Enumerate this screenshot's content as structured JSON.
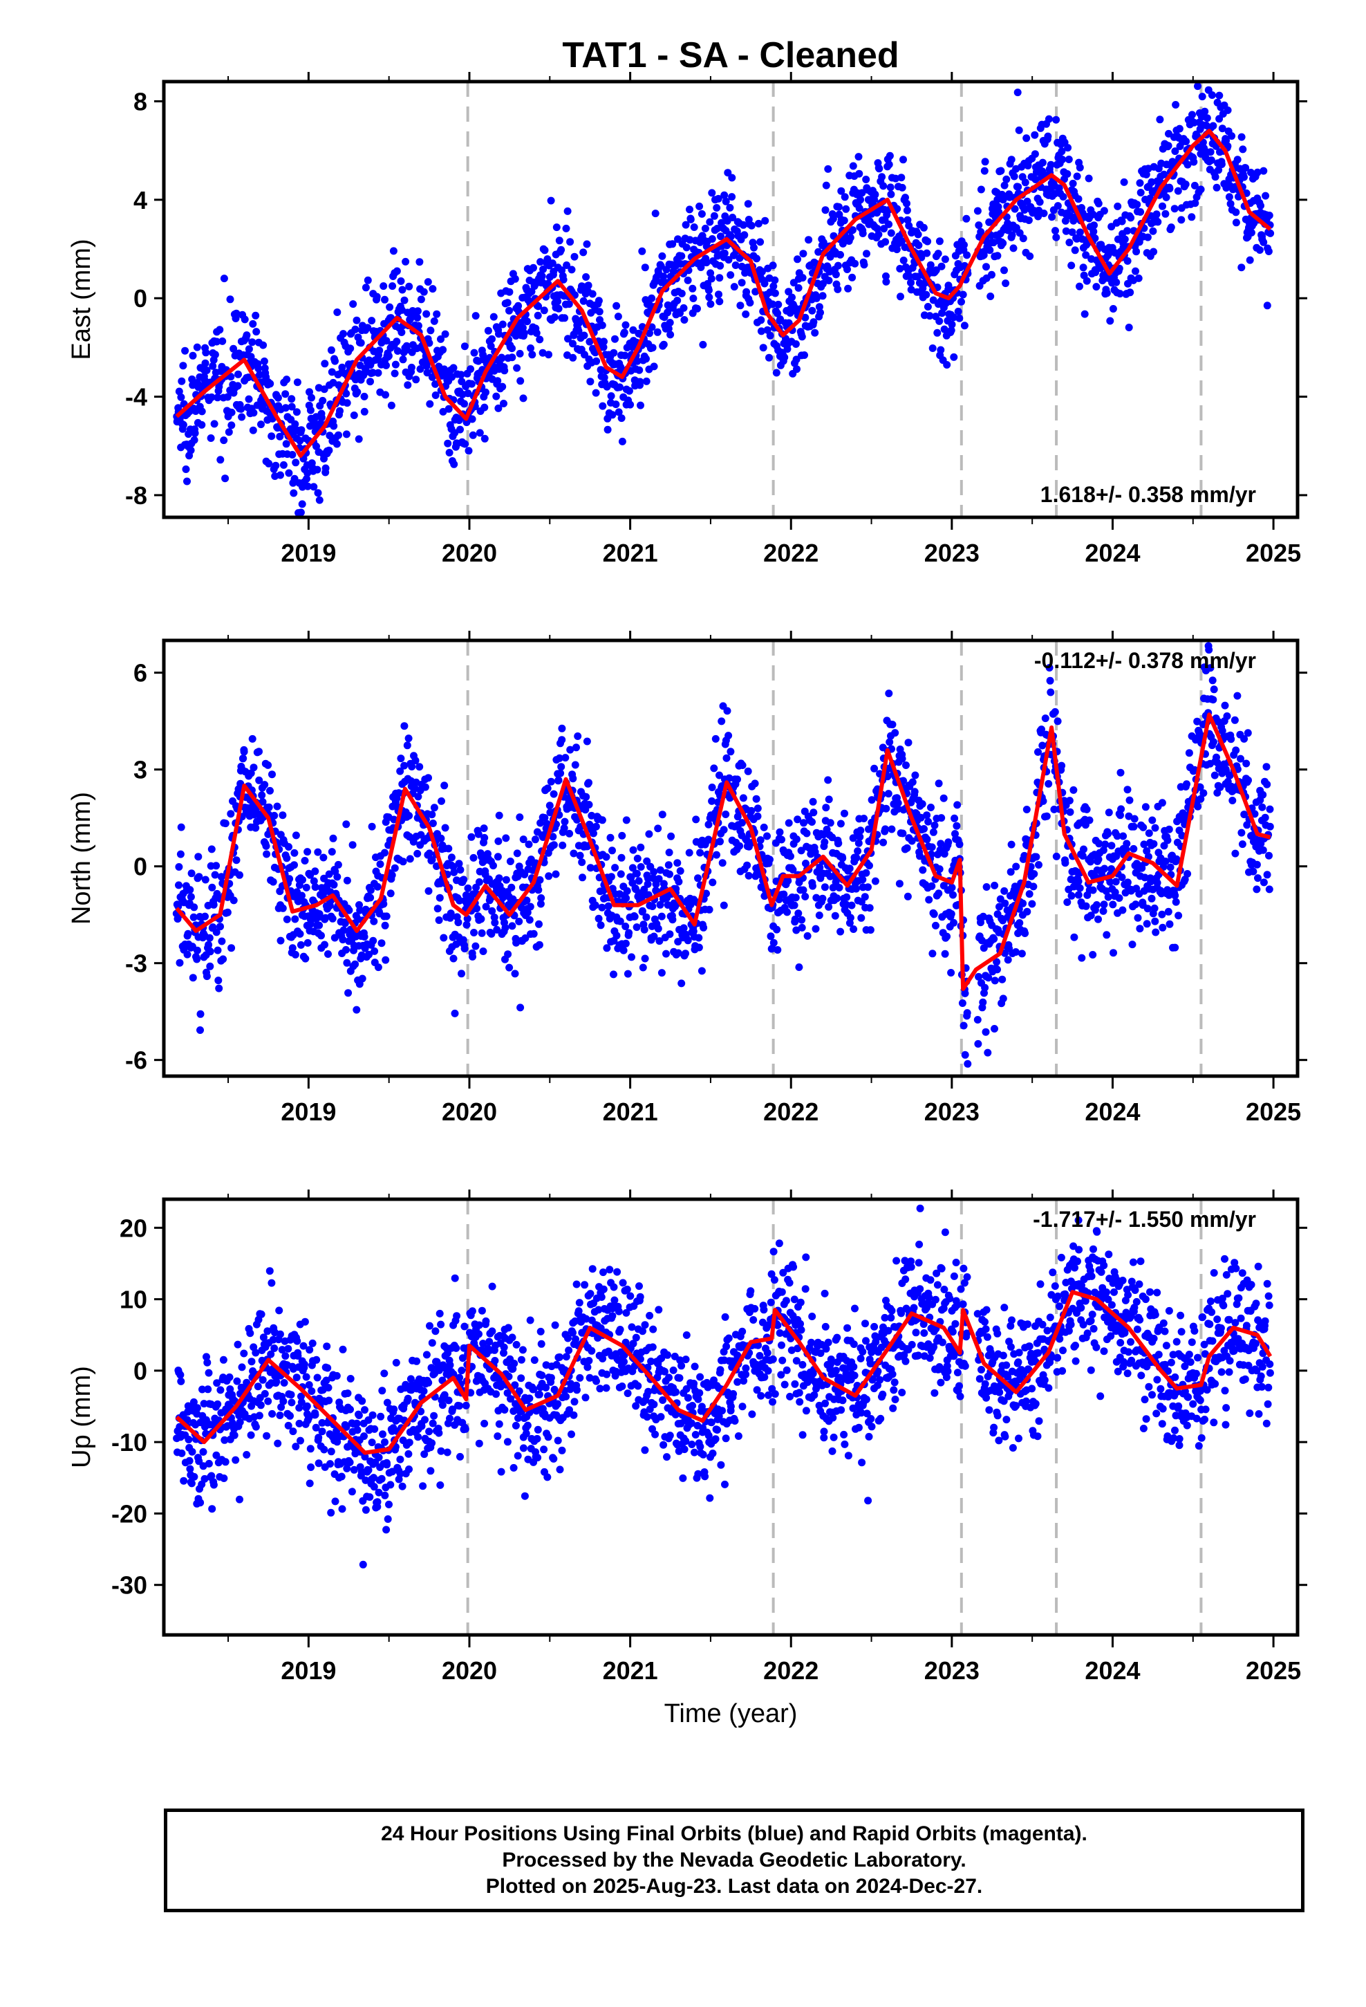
{
  "title": "TAT1  - SA - Cleaned",
  "xlabel": "Time (year)",
  "colors": {
    "points": "#0000ff",
    "fit": "#ff0000",
    "breaks": "#bbbbbb",
    "frame": "#000000"
  },
  "footer": {
    "line1": "24 Hour Positions Using Final Orbits (blue) and Rapid Orbits (magenta).",
    "line2": "Processed by the Nevada Geodetic Laboratory.",
    "line3": "Plotted on 2025-Aug-23. Last data on 2024-Dec-27."
  },
  "chart_data": [
    {
      "type": "scatter",
      "component": "east",
      "ylabel": "East (mm)",
      "velocity_label": "1.618+/- 0.358 mm/yr",
      "velocity_label_position": "bottom-right",
      "xlim": [
        2018.1,
        2025.15
      ],
      "ylim": [
        -8.9,
        8.8
      ],
      "yticks": [
        -8,
        -4,
        0,
        4,
        8
      ],
      "xticks": [
        2019,
        2020,
        2021,
        2022,
        2023,
        2024,
        2025
      ],
      "breaks": [
        2019.99,
        2021.89,
        2023.06,
        2023.65,
        2024.55
      ],
      "grid": false,
      "n_points": 2200,
      "noise_sd": 1.2,
      "series": [
        {
          "name": "Final Orbits",
          "kind": "points",
          "color": "#0000ff"
        },
        {
          "name": "Model fit",
          "kind": "line",
          "color": "#ff0000",
          "x": [
            2018.18,
            2018.35,
            2018.6,
            2018.8,
            2018.95,
            2019.1,
            2019.3,
            2019.55,
            2019.7,
            2019.85,
            2019.98,
            2020.1,
            2020.3,
            2020.55,
            2020.7,
            2020.85,
            2020.95,
            2021.05,
            2021.2,
            2021.4,
            2021.6,
            2021.75,
            2021.85,
            2021.95,
            2022.05,
            2022.2,
            2022.4,
            2022.6,
            2022.75,
            2022.9,
            2022.98,
            2023.05,
            2023.07,
            2023.2,
            2023.4,
            2023.62,
            2023.7,
            2023.85,
            2023.98,
            2024.1,
            2024.3,
            2024.5,
            2024.6,
            2024.7,
            2024.85,
            2024.98
          ],
          "y": [
            -4.8,
            -3.8,
            -2.5,
            -4.8,
            -6.4,
            -5.2,
            -2.5,
            -0.8,
            -1.5,
            -4.0,
            -4.9,
            -3.0,
            -0.8,
            0.7,
            -0.5,
            -2.8,
            -3.2,
            -2.0,
            0.3,
            1.6,
            2.4,
            1.5,
            -0.6,
            -1.5,
            -0.9,
            1.8,
            3.2,
            4.0,
            2.0,
            0.2,
            0.0,
            0.5,
            0.8,
            2.5,
            4.0,
            5.0,
            4.6,
            2.5,
            1.0,
            2.0,
            4.5,
            6.2,
            6.8,
            6.0,
            3.5,
            2.8
          ]
        }
      ]
    },
    {
      "type": "scatter",
      "component": "north",
      "ylabel": "North (mm)",
      "velocity_label": "-0.112+/- 0.378 mm/yr",
      "velocity_label_position": "top-right",
      "xlim": [
        2018.1,
        2025.15
      ],
      "ylim": [
        -6.5,
        7.0
      ],
      "yticks": [
        -6,
        -3,
        0,
        3,
        6
      ],
      "xticks": [
        2019,
        2020,
        2021,
        2022,
        2023,
        2024,
        2025
      ],
      "breaks": [
        2019.99,
        2021.89,
        2023.06,
        2023.65,
        2024.55
      ],
      "grid": false,
      "n_points": 2200,
      "noise_sd": 1.05,
      "series": [
        {
          "name": "Final Orbits",
          "kind": "points",
          "color": "#0000ff"
        },
        {
          "name": "Model fit",
          "kind": "line",
          "color": "#ff0000",
          "x": [
            2018.18,
            2018.3,
            2018.45,
            2018.6,
            2018.75,
            2018.9,
            2019.05,
            2019.15,
            2019.3,
            2019.45,
            2019.6,
            2019.75,
            2019.9,
            2019.98,
            2020.1,
            2020.25,
            2020.4,
            2020.6,
            2020.75,
            2020.9,
            2021.05,
            2021.25,
            2021.4,
            2021.6,
            2021.75,
            2021.88,
            2021.95,
            2022.05,
            2022.2,
            2022.35,
            2022.5,
            2022.6,
            2022.75,
            2022.9,
            2023.0,
            2023.05,
            2023.07,
            2023.15,
            2023.3,
            2023.45,
            2023.62,
            2023.7,
            2023.85,
            2024.0,
            2024.1,
            2024.25,
            2024.4,
            2024.6,
            2024.75,
            2024.9,
            2024.98
          ],
          "y": [
            -1.3,
            -2.0,
            -1.5,
            2.5,
            1.5,
            -1.4,
            -1.2,
            -0.9,
            -2.0,
            -1.0,
            2.4,
            1.2,
            -1.2,
            -1.5,
            -0.6,
            -1.5,
            -0.5,
            2.7,
            0.8,
            -1.2,
            -1.2,
            -0.7,
            -1.8,
            2.6,
            1.2,
            -1.2,
            -0.3,
            -0.3,
            0.3,
            -0.6,
            0.5,
            3.6,
            1.5,
            -0.3,
            -0.5,
            0.2,
            -3.8,
            -3.2,
            -2.7,
            -0.5,
            4.3,
            1.0,
            -0.5,
            -0.3,
            0.4,
            0.1,
            -0.6,
            4.7,
            3.0,
            1.0,
            0.9
          ]
        }
      ]
    },
    {
      "type": "scatter",
      "component": "up",
      "ylabel": "Up (mm)",
      "velocity_label": "-1.717+/- 1.550 mm/yr",
      "velocity_label_position": "top-right",
      "xlim": [
        2018.1,
        2025.15
      ],
      "ylim": [
        -37,
        24
      ],
      "yticks": [
        -30,
        -20,
        -10,
        0,
        10,
        20
      ],
      "xticks": [
        2019,
        2020,
        2021,
        2022,
        2023,
        2024,
        2025
      ],
      "breaks": [
        2019.99,
        2021.89,
        2023.06,
        2023.65,
        2024.55
      ],
      "grid": false,
      "n_points": 2200,
      "noise_sd": 4.8,
      "series": [
        {
          "name": "Final Orbits",
          "kind": "points",
          "color": "#0000ff"
        },
        {
          "name": "Model fit",
          "kind": "line",
          "color": "#ff0000",
          "x": [
            2018.18,
            2018.35,
            2018.55,
            2018.75,
            2018.95,
            2019.15,
            2019.35,
            2019.5,
            2019.7,
            2019.9,
            2019.98,
            2020.0,
            2020.2,
            2020.35,
            2020.55,
            2020.75,
            2020.95,
            2021.15,
            2021.3,
            2021.45,
            2021.6,
            2021.75,
            2021.88,
            2021.9,
            2022.05,
            2022.2,
            2022.4,
            2022.6,
            2022.75,
            2022.95,
            2023.05,
            2023.07,
            2023.2,
            2023.4,
            2023.6,
            2023.75,
            2023.9,
            2024.1,
            2024.3,
            2024.4,
            2024.55,
            2024.6,
            2024.75,
            2024.9,
            2024.98
          ],
          "y": [
            -6.5,
            -10.0,
            -5.0,
            1.5,
            -2.5,
            -7.0,
            -11.5,
            -11.0,
            -4.5,
            -1.0,
            -4.0,
            3.5,
            -0.5,
            -5.5,
            -3.5,
            6.0,
            3.5,
            -1.5,
            -5.5,
            -7.0,
            -2.0,
            4.0,
            4.5,
            8.5,
            4.0,
            -1.0,
            -3.5,
            3.0,
            8.0,
            6.0,
            2.5,
            8.5,
            1.0,
            -3.0,
            2.5,
            11.0,
            10.0,
            6.0,
            0.0,
            -2.5,
            -2.0,
            2.0,
            6.0,
            5.0,
            2.0
          ]
        }
      ]
    }
  ]
}
